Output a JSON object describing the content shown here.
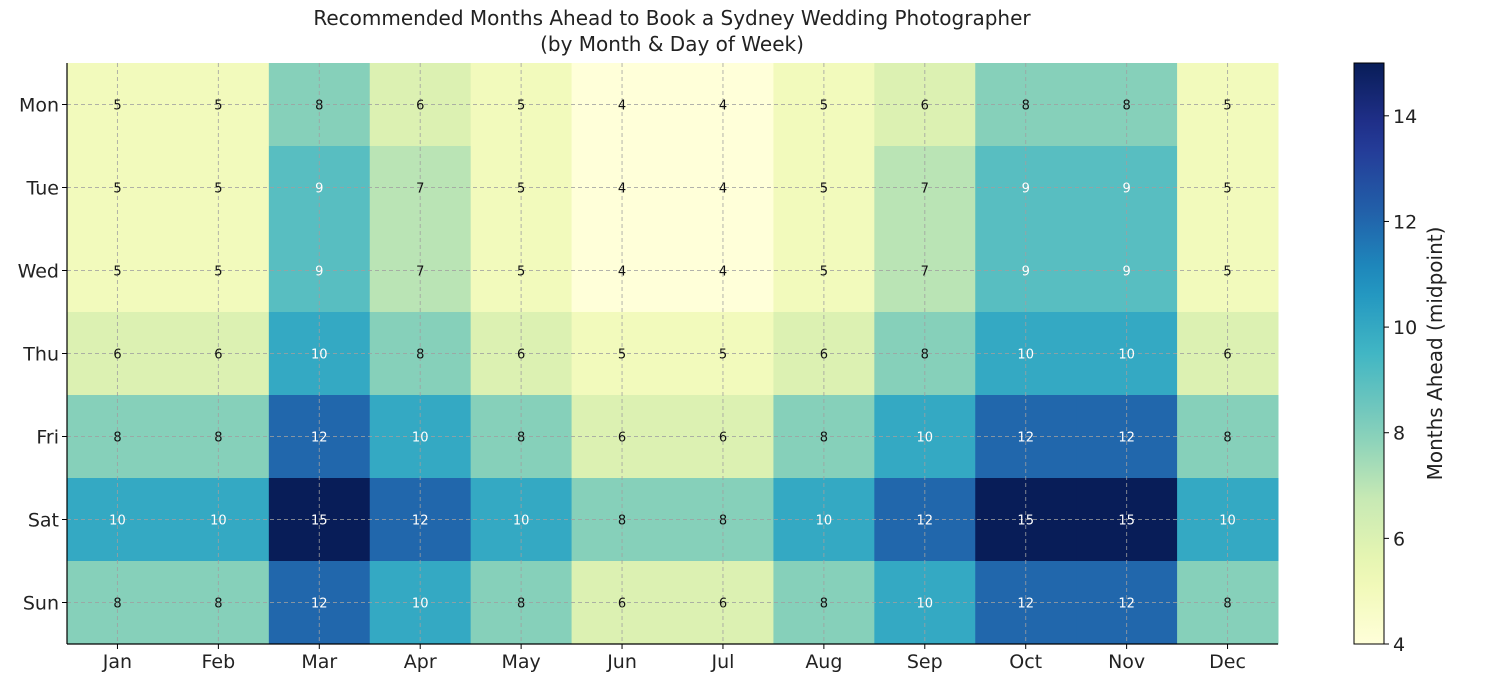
{
  "chart_data": {
    "type": "heatmap",
    "title": "Recommended Months Ahead to Book a Sydney Wedding Photographer",
    "subtitle": "(by Month & Day of Week)",
    "x_categories": [
      "Jan",
      "Feb",
      "Mar",
      "Apr",
      "May",
      "Jun",
      "Jul",
      "Aug",
      "Sep",
      "Oct",
      "Nov",
      "Dec"
    ],
    "y_categories": [
      "Mon",
      "Tue",
      "Wed",
      "Thu",
      "Fri",
      "Sat",
      "Sun"
    ],
    "values": [
      [
        5,
        5,
        8,
        6,
        5,
        4,
        4,
        5,
        6,
        8,
        8,
        5
      ],
      [
        5,
        5,
        9,
        7,
        5,
        4,
        4,
        5,
        7,
        9,
        9,
        5
      ],
      [
        5,
        5,
        9,
        7,
        5,
        4,
        4,
        5,
        7,
        9,
        9,
        5
      ],
      [
        6,
        6,
        10,
        8,
        6,
        5,
        5,
        6,
        8,
        10,
        10,
        6
      ],
      [
        8,
        8,
        12,
        10,
        8,
        6,
        6,
        8,
        10,
        12,
        12,
        8
      ],
      [
        10,
        10,
        15,
        12,
        10,
        8,
        8,
        10,
        12,
        15,
        15,
        10
      ],
      [
        8,
        8,
        12,
        10,
        8,
        6,
        6,
        8,
        10,
        12,
        12,
        8
      ]
    ],
    "colorbar": {
      "label": "Months Ahead (midpoint)",
      "range": [
        4,
        15
      ],
      "ticks": [
        4,
        6,
        8,
        10,
        12,
        14
      ],
      "colormap": "YlGnBu"
    },
    "grid": true
  }
}
